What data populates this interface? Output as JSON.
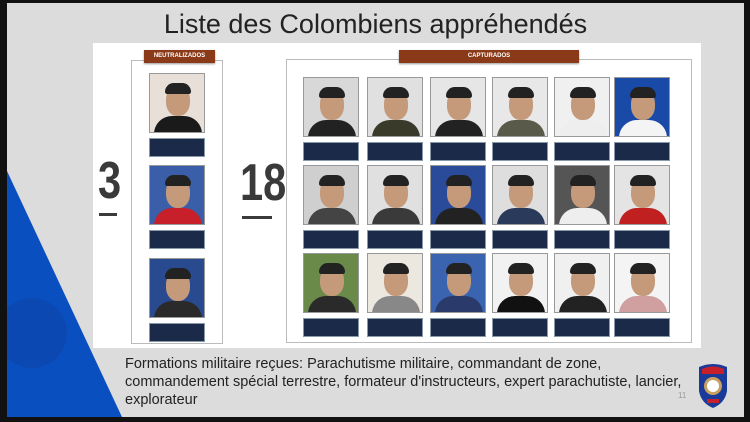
{
  "slide": {
    "title": "Liste des Colombiens appréhendés",
    "neutralized": {
      "header": "NEUTRALIZADOS",
      "count": "3",
      "photos": [
        {
          "bg": "#e8e0d8",
          "shirt": "#1a1a1a"
        },
        {
          "bg": "#3a5fa8",
          "shirt": "#c8202a"
        },
        {
          "bg": "#2a4a90",
          "shirt": "#2a2a2a"
        }
      ]
    },
    "captured": {
      "header": "CAPTURADOS",
      "count": "18",
      "photos": [
        {
          "bg": "#d8d8d8",
          "shirt": "#222"
        },
        {
          "bg": "#e0e0e0",
          "shirt": "#3a3a2a"
        },
        {
          "bg": "#e6e6e6",
          "shirt": "#222"
        },
        {
          "bg": "#e8e8e8",
          "shirt": "#5a5a4a"
        },
        {
          "bg": "#f0f0f0",
          "shirt": "#eee"
        },
        {
          "bg": "#1a4aa8",
          "shirt": "#f4f4f4"
        },
        {
          "bg": "#cfcfcf",
          "shirt": "#444"
        },
        {
          "bg": "#e0e0e0",
          "shirt": "#3a3a3a"
        },
        {
          "bg": "#2a4a9a",
          "shirt": "#222"
        },
        {
          "bg": "#dedede",
          "shirt": "#2a3a5a"
        },
        {
          "bg": "#555",
          "shirt": "#eee"
        },
        {
          "bg": "#e4e4e4",
          "shirt": "#c02020"
        },
        {
          "bg": "#6a8a4a",
          "shirt": "#2a2a2a"
        },
        {
          "bg": "#ece8e0",
          "shirt": "#888"
        },
        {
          "bg": "#3a64b0",
          "shirt": "#2a3a6a"
        },
        {
          "bg": "#f2f2f2",
          "shirt": "#111"
        },
        {
          "bg": "#f0f0f0",
          "shirt": "#222"
        },
        {
          "bg": "#f4f4f4",
          "shirt": "#d0a0a0"
        }
      ]
    },
    "caption": "Formations militaire reçues: Parachutisme militaire, commandant de zone, commandement spécial terrestre, formateur d'instructeurs, expert parachutiste, lancier, explorateur",
    "page_number": "11",
    "accent": "#0a4fc0",
    "header_color": "#8a3a18"
  }
}
